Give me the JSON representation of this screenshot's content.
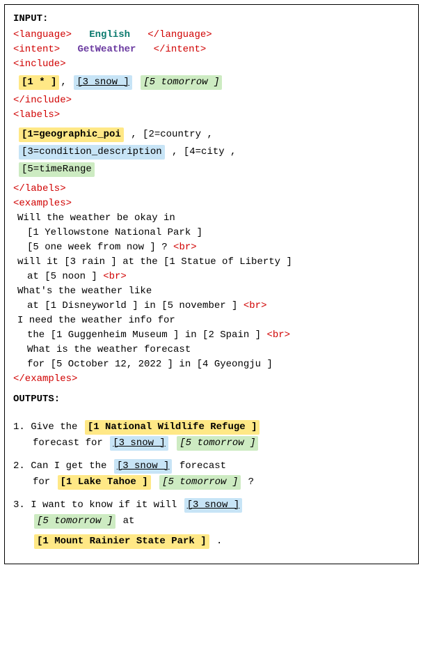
{
  "header_input": "INPUT:",
  "tags": {
    "lang_open": "<language>",
    "lang_close": "</language>",
    "intent_open": "<intent>",
    "intent_close": "</intent>",
    "include_open": "<include>",
    "include_close": "</include>",
    "labels_open": "<labels>",
    "labels_close": "</labels>",
    "examples_open": "<examples>",
    "examples_close": "</examples>",
    "br": "<br>"
  },
  "language": "English",
  "intent": "GetWeather",
  "include": [
    {
      "text": "[1 * ]",
      "hl": "hl1",
      "style": "bold"
    },
    {
      "text": ", ",
      "hl": "",
      "style": ""
    },
    {
      "text": "[3 snow ]",
      "hl": "hl3",
      "style": "ul"
    },
    {
      "text": "  ",
      "hl": "",
      "style": ""
    },
    {
      "text": "[5 tomorrow ]",
      "hl": "hl5",
      "style": "it"
    }
  ],
  "labels": [
    {
      "text": "[1=geographic_poi",
      "hl": "hl1",
      "style": "bold"
    },
    {
      "text": ", [2=country ,",
      "hl": "",
      "style": ""
    },
    {
      "text": "[3=condition_description",
      "hl": "hl3",
      "style": ""
    },
    {
      "text": ", [4=city ,",
      "hl": "",
      "style": ""
    },
    {
      "text": "[5=timeRange",
      "hl": "hl5",
      "style": ""
    }
  ],
  "examples": [
    {
      "lines": [
        "Will the weather be okay in",
        " [1 Yellowstone National Park ]",
        " [5 one week from now ] ? "
      ],
      "indent": [
        0,
        1,
        1
      ]
    },
    {
      "lines": [
        "will it [3 rain ] at the [1 Statue of Liberty ]",
        " at [5 noon ] "
      ],
      "indent": [
        0,
        1
      ]
    },
    {
      "lines": [
        "What's the weather like",
        " at [1 Disneyworld ] in [5 november ] "
      ],
      "indent": [
        0,
        1
      ]
    },
    {
      "lines": [
        "I need the weather info for",
        " the [1 Guggenheim Museum ] in [2 Spain ] "
      ],
      "indent": [
        0,
        1
      ]
    },
    {
      "lines": [
        " What is the weather forecast",
        " for [5 October 12, 2022 ] in [4 Gyeongju ]"
      ],
      "indent": [
        1,
        1
      ]
    }
  ],
  "header_output": "OUTPUTS:",
  "outputs": [
    [
      {
        "text": "1. Give the ",
        "hl": "",
        "style": ""
      },
      {
        "text": "[1 National Wildlife Refuge ]",
        "hl": "hl1",
        "style": "bold"
      },
      {
        "text": "\n   forecast for ",
        "hl": "",
        "style": ""
      },
      {
        "text": "[3 snow ]",
        "hl": "hl3",
        "style": "ul"
      },
      {
        "text": "  ",
        "hl": "",
        "style": ""
      },
      {
        "text": "[5 tomorrow ]",
        "hl": "hl5",
        "style": "it"
      }
    ],
    [
      {
        "text": "2. Can I get the ",
        "hl": "",
        "style": ""
      },
      {
        "text": "[3 snow ]",
        "hl": "hl3",
        "style": "ul"
      },
      {
        "text": " forecast",
        "hl": "",
        "style": ""
      },
      {
        "text": "\n   for ",
        "hl": "",
        "style": ""
      },
      {
        "text": "[1 Lake Tahoe ]",
        "hl": "hl1",
        "style": "bold"
      },
      {
        "text": "  ",
        "hl": "",
        "style": ""
      },
      {
        "text": "[5 tomorrow ]",
        "hl": "hl5",
        "style": "it"
      },
      {
        "text": " ?",
        "hl": "",
        "style": ""
      }
    ],
    [
      {
        "text": "3. I want to know if it will ",
        "hl": "",
        "style": ""
      },
      {
        "text": "[3 snow ]",
        "hl": "hl3",
        "style": "ul"
      },
      {
        "text": "\n   ",
        "hl": "",
        "style": ""
      },
      {
        "text": "[5 tomorrow ]",
        "hl": "hl5",
        "style": "it"
      },
      {
        "text": " at",
        "hl": "",
        "style": ""
      },
      {
        "text": "\n   ",
        "hl": "",
        "style": ""
      },
      {
        "text": "[1 Mount Rainier State Park ]",
        "hl": "hl1",
        "style": "bold"
      },
      {
        "text": " .",
        "hl": "",
        "style": ""
      }
    ]
  ]
}
